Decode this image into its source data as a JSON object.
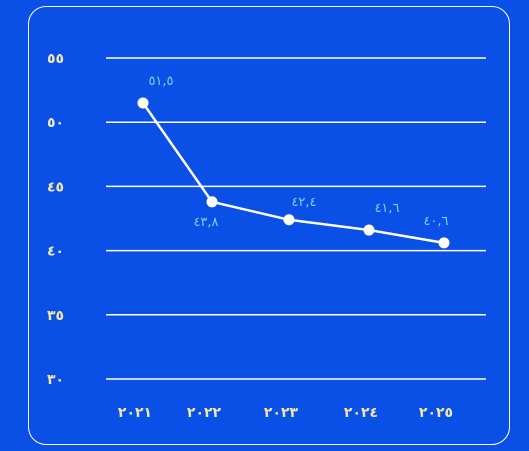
{
  "colors": {
    "background": "#0a50e6",
    "line": "#ffffff",
    "grid": "#ffffff",
    "tick_label": "#f0e7a8",
    "data_label": "#7fd0ff",
    "frame": "#ffffff"
  },
  "chart_data": {
    "type": "line",
    "categories": [
      "٢٠٢١",
      "٢٠٢٢",
      "٢٠٢٣",
      "٢٠٢٤",
      "٢٠٢٥"
    ],
    "values": [
      51.5,
      43.8,
      42.4,
      41.6,
      40.6
    ],
    "value_labels": [
      "٥١,٥",
      "٤٣,٨",
      "٤٢,٤",
      "٤١,٦",
      "٤٠,٦"
    ],
    "yticks": [
      30,
      35,
      40,
      45,
      50,
      55
    ],
    "ytick_labels": [
      "٣٠",
      "٣٥",
      "٤٠",
      "٤٥",
      "٥٠",
      "٥٥"
    ],
    "ylim": [
      30,
      55
    ],
    "grid": true,
    "legend": "none"
  }
}
